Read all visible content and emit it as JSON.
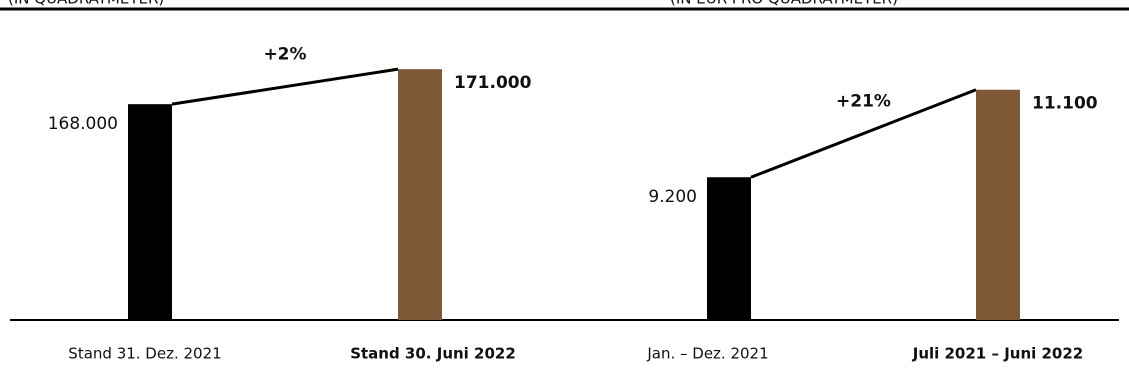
{
  "chart_data": [
    {
      "type": "bar",
      "subtitle": "(IN QUADRATMETER)",
      "categories": [
        "Stand 31. Dez. 2021",
        "Stand 30. Juni 2022"
      ],
      "values": [
        168000,
        171000
      ],
      "value_labels": [
        "168.000",
        "171.000"
      ],
      "colors": [
        "#000000",
        "#7f5837"
      ],
      "annotation": "+2%",
      "ylim": [
        149500,
        172000
      ]
    },
    {
      "type": "bar",
      "subtitle": "(IN EUR PRO QUADRATMETER)",
      "categories": [
        "Jan. – Dez. 2021",
        "Juli 2021 – Juni 2022"
      ],
      "values": [
        9200,
        11100
      ],
      "value_labels": [
        "9.200",
        "11.100"
      ],
      "colors": [
        "#000000",
        "#7f5837"
      ],
      "annotation": "+21%",
      "ylim": [
        6100,
        11800
      ]
    }
  ]
}
